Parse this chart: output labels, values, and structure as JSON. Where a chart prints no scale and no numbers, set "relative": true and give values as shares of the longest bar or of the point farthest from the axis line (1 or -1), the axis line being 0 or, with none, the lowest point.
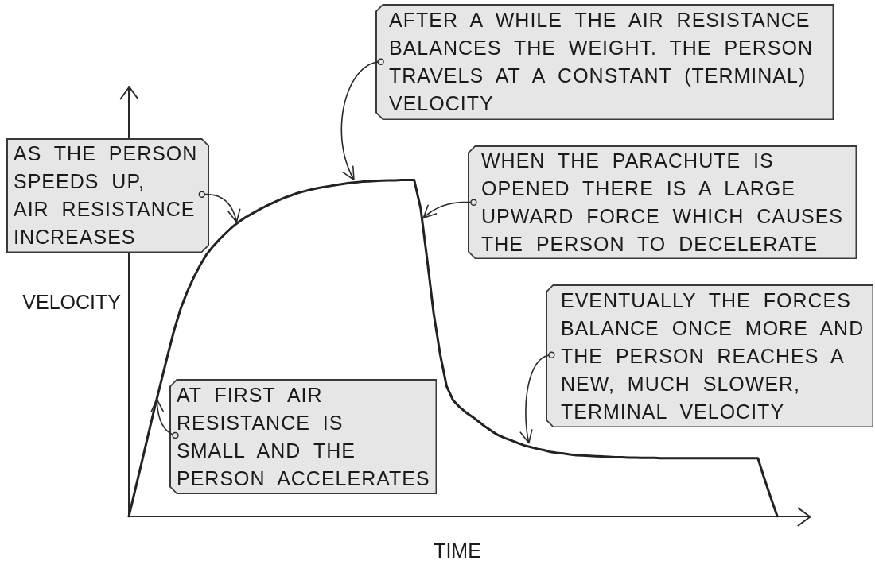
{
  "chart_data": {
    "type": "line",
    "relative": true,
    "xlabel": "TIME",
    "ylabel": "VELOCITY",
    "color": "#222222",
    "marker": "none",
    "line_style": "solid",
    "categories": [
      null,
      null,
      null,
      null,
      null,
      null,
      null,
      null,
      null,
      null,
      null,
      null,
      null,
      null,
      null,
      null,
      null,
      null,
      null,
      null,
      null,
      null,
      null,
      null,
      null,
      null,
      null,
      null,
      null,
      null,
      null,
      null,
      null,
      null,
      null,
      null,
      null,
      null,
      null,
      null,
      null,
      null,
      null,
      null,
      null,
      null,
      null,
      null,
      null,
      null,
      null,
      null,
      null,
      null,
      null,
      null,
      null,
      null,
      null,
      null,
      null,
      null,
      null,
      null,
      null,
      null,
      null,
      null,
      null,
      null,
      null,
      null,
      null,
      null,
      null,
      null,
      null,
      null,
      null,
      null,
      null,
      null,
      null,
      null,
      null,
      null,
      null,
      null,
      null,
      null,
      null,
      null,
      null,
      null,
      null,
      null,
      null,
      null,
      null,
      null,
      null,
      null,
      null,
      null,
      null,
      null
    ],
    "values": [
      0,
      0.081,
      0.162,
      0.244,
      0.325,
      0.403,
      0.48,
      0.555,
      0.618,
      0.668,
      0.71,
      0.747,
      0.779,
      0.803,
      0.824,
      0.843,
      0.861,
      0.876,
      0.889,
      0.9,
      0.911,
      0.921,
      0.93,
      0.939,
      0.947,
      0.954,
      0.961,
      0.966,
      0.971,
      0.975,
      0.979,
      0.982,
      0.985,
      0.988,
      0.991,
      0.993,
      0.995,
      0.996,
      0.997,
      0.998,
      0.999,
      0.999,
      1,
      1,
      1,
      0.915,
      0.763,
      0.604,
      0.482,
      0.387,
      0.345,
      0.325,
      0.309,
      0.296,
      0.281,
      0.266,
      0.253,
      0.241,
      0.233,
      0.226,
      0.218,
      0.211,
      0.206,
      0.201,
      0.197,
      0.192,
      0.189,
      0.187,
      0.184,
      0.182,
      0.181,
      0.18,
      0.179,
      0.178,
      0.177,
      0.176,
      0.176,
      0.175,
      0.175,
      0.174,
      0.174,
      0.174,
      0.173,
      0.173,
      0.173,
      0.173,
      0.173,
      0.173,
      0.173,
      0.173,
      0.173,
      0.173,
      0.173,
      0.173,
      0.173,
      0.173,
      0.173,
      0.173,
      0.112,
      0.055,
      0,
      null,
      null,
      null,
      null,
      null
    ],
    "annotations": [
      "AS THE PERSON\nSPEEDS UP,\nAIR RESISTANCE\nINCREASES",
      "AFTER A WHILE THE AIR RESISTANCE\nBALANCES THE WEIGHT. THE PERSON\nTRAVELS AT A CONSTANT (TERMINAL)\nVELOCITY",
      "WHEN THE PARACHUTE IS\nOPENED THERE IS A LARGE\nUPWARD FORCE WHICH CAUSES\nTHE PERSON TO DECELERATE",
      "EVENTUALLY THE FORCES\nBALANCE ONCE MORE AND\nTHE PERSON REACHES A\nNEW, MUCH SLOWER,\nTERMINAL VELOCITY",
      "AT FIRST AIR\nRESISTANCE IS\nSMALL AND THE\nPERSON ACCELERATES"
    ]
  }
}
